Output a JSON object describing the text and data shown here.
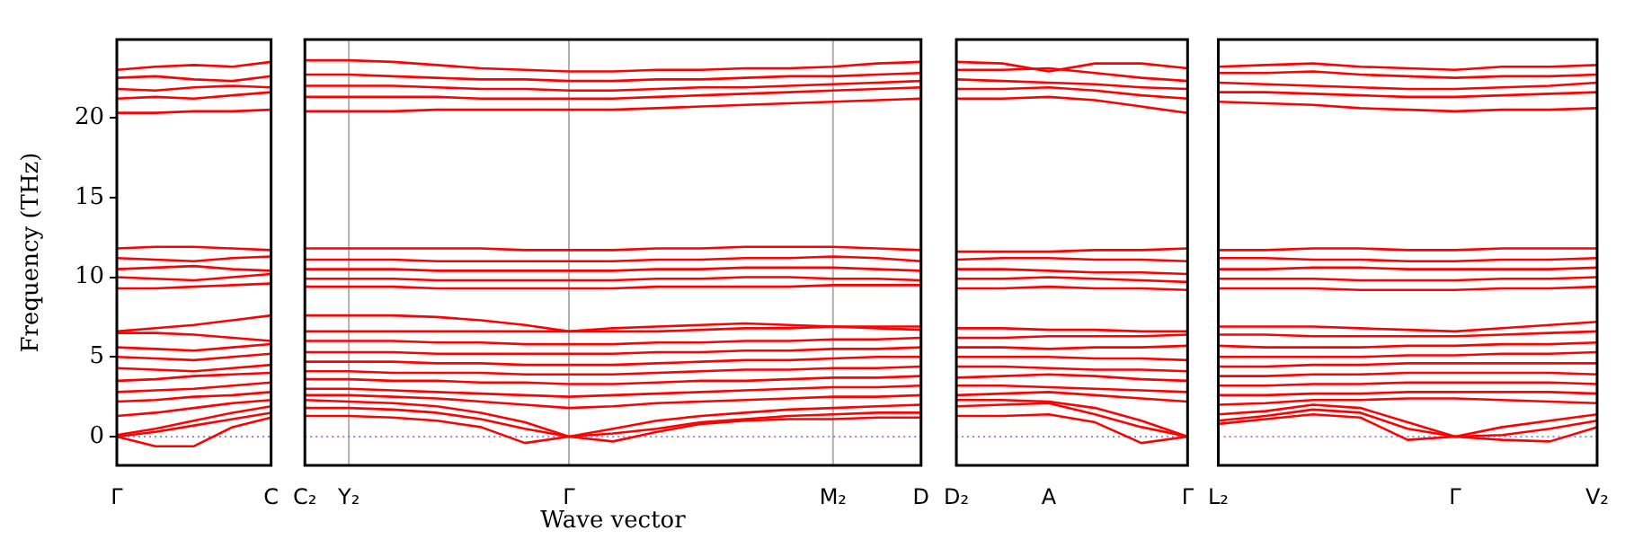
{
  "chart_data": [
    {
      "type": "line",
      "ylabel": "Frequency (THz)",
      "categories": [
        "Γ",
        null,
        null,
        null,
        "C"
      ],
      "ylim": [
        -1.8,
        24.9
      ],
      "yticks": [
        0,
        5,
        10,
        15,
        20
      ],
      "legend": false,
      "marker": "none",
      "line_style": "solid",
      "ref_lines": [
        {
          "axis": "y",
          "value": 0,
          "color": "#6666ff",
          "line_style": "dotted"
        }
      ],
      "series": [
        {
          "color": "#ff0000",
          "values": [
            0,
            -0.6,
            -0.6,
            0.6,
            1.2
          ]
        },
        {
          "color": "#ff0000",
          "values": [
            0,
            0.3,
            0.7,
            1.1,
            1.5
          ]
        },
        {
          "color": "#ff0000",
          "values": [
            0.1,
            0.5,
            1.0,
            1.5,
            1.9
          ]
        },
        {
          "color": "#ff0000",
          "values": [
            1.3,
            1.5,
            1.8,
            2.1,
            2.3
          ]
        },
        {
          "color": "#ff0000",
          "values": [
            2.2,
            2.3,
            2.5,
            2.6,
            2.8
          ]
        },
        {
          "color": "#ff0000",
          "values": [
            2.8,
            2.9,
            3.0,
            3.2,
            3.4
          ]
        },
        {
          "color": "#ff0000",
          "values": [
            3.5,
            3.6,
            3.8,
            3.9,
            4.0
          ]
        },
        {
          "color": "#ff0000",
          "values": [
            4.3,
            4.2,
            4.1,
            4.3,
            4.5
          ]
        },
        {
          "color": "#ff0000",
          "values": [
            5.0,
            4.9,
            4.8,
            5.0,
            5.2
          ]
        },
        {
          "color": "#ff0000",
          "values": [
            5.6,
            5.5,
            5.4,
            5.6,
            5.8
          ]
        },
        {
          "color": "#ff0000",
          "values": [
            6.5,
            6.5,
            6.4,
            6.2,
            6.0
          ]
        },
        {
          "color": "#ff0000",
          "values": [
            6.6,
            6.8,
            7.0,
            7.3,
            7.6
          ]
        },
        {
          "color": "#ff0000",
          "values": [
            9.3,
            9.3,
            9.4,
            9.5,
            9.6
          ]
        },
        {
          "color": "#ff0000",
          "values": [
            10.0,
            9.9,
            9.8,
            10.0,
            10.2
          ]
        },
        {
          "color": "#ff0000",
          "values": [
            10.5,
            10.6,
            10.7,
            10.5,
            10.4
          ]
        },
        {
          "color": "#ff0000",
          "values": [
            11.2,
            11.1,
            11.0,
            11.2,
            11.3
          ]
        },
        {
          "color": "#ff0000",
          "values": [
            11.8,
            11.9,
            11.9,
            11.8,
            11.7
          ]
        },
        {
          "color": "#ff0000",
          "values": [
            20.3,
            20.3,
            20.4,
            20.4,
            20.5
          ]
        },
        {
          "color": "#ff0000",
          "values": [
            21.2,
            21.3,
            21.2,
            21.4,
            21.6
          ]
        },
        {
          "color": "#ff0000",
          "values": [
            21.8,
            21.7,
            21.9,
            22.0,
            21.9
          ]
        },
        {
          "color": "#ff0000",
          "values": [
            22.5,
            22.6,
            22.4,
            22.3,
            22.6
          ]
        },
        {
          "color": "#ff0000",
          "values": [
            23.0,
            23.2,
            23.3,
            23.2,
            23.5
          ]
        }
      ]
    },
    {
      "type": "line",
      "xlabel": "Wave vector",
      "categories": [
        "C₂",
        "Y₂",
        null,
        null,
        null,
        null,
        "Γ",
        null,
        null,
        null,
        null,
        null,
        "M₂",
        null,
        "D"
      ],
      "ylim": [
        -1.8,
        24.9
      ],
      "yticks": [
        0,
        5,
        10,
        15,
        20
      ],
      "tick_labels": "x",
      "grid": "x",
      "legend": false,
      "marker": "none",
      "line_style": "solid",
      "ref_lines": [
        {
          "axis": "y",
          "value": 0,
          "color": "#6666ff",
          "line_style": "dotted"
        }
      ],
      "series": [
        {
          "color": "#ff0000",
          "values": [
            1.3,
            1.3,
            1.2,
            1.0,
            0.6,
            -0.4,
            0,
            -0.3,
            0.3,
            0.8,
            1.0,
            1.1,
            1.1,
            1.2,
            1.2
          ]
        },
        {
          "color": "#ff0000",
          "values": [
            1.8,
            1.8,
            1.7,
            1.5,
            1.1,
            0.5,
            0,
            0.2,
            0.5,
            0.9,
            1.1,
            1.3,
            1.4,
            1.5,
            1.5
          ]
        },
        {
          "color": "#ff0000",
          "values": [
            2.3,
            2.2,
            2.1,
            1.9,
            1.5,
            0.9,
            0,
            0.5,
            1.0,
            1.3,
            1.5,
            1.7,
            1.8,
            1.9,
            2.0
          ]
        },
        {
          "color": "#ff0000",
          "values": [
            2.6,
            2.6,
            2.5,
            2.4,
            2.2,
            2.0,
            1.8,
            1.9,
            2.1,
            2.2,
            2.3,
            2.4,
            2.5,
            2.5,
            2.6
          ]
        },
        {
          "color": "#ff0000",
          "values": [
            3.0,
            3.0,
            2.9,
            2.8,
            2.7,
            2.6,
            2.5,
            2.6,
            2.7,
            2.8,
            2.9,
            3.0,
            3.1,
            3.1,
            3.2
          ]
        },
        {
          "color": "#ff0000",
          "values": [
            3.6,
            3.6,
            3.5,
            3.5,
            3.4,
            3.4,
            3.3,
            3.3,
            3.4,
            3.5,
            3.5,
            3.6,
            3.7,
            3.7,
            3.8
          ]
        },
        {
          "color": "#ff0000",
          "values": [
            4.1,
            4.1,
            4.0,
            4.0,
            4.0,
            3.9,
            3.9,
            3.9,
            4.0,
            4.1,
            4.2,
            4.2,
            4.3,
            4.3,
            4.4
          ]
        },
        {
          "color": "#ff0000",
          "values": [
            4.7,
            4.7,
            4.7,
            4.6,
            4.6,
            4.5,
            4.5,
            4.5,
            4.6,
            4.7,
            4.8,
            4.8,
            4.9,
            5.0,
            5.0
          ]
        },
        {
          "color": "#ff0000",
          "values": [
            5.3,
            5.3,
            5.3,
            5.2,
            5.2,
            5.2,
            5.2,
            5.2,
            5.3,
            5.3,
            5.4,
            5.4,
            5.5,
            5.5,
            5.6
          ]
        },
        {
          "color": "#ff0000",
          "values": [
            6.0,
            6.0,
            6.0,
            5.9,
            5.9,
            5.8,
            5.8,
            5.8,
            5.9,
            5.9,
            6.0,
            6.0,
            6.1,
            6.1,
            6.2
          ]
        },
        {
          "color": "#ff0000",
          "values": [
            6.6,
            6.6,
            6.6,
            6.6,
            6.6,
            6.6,
            6.6,
            6.6,
            6.6,
            6.7,
            6.8,
            6.8,
            6.9,
            6.9,
            6.9
          ]
        },
        {
          "color": "#ff0000",
          "values": [
            7.6,
            7.6,
            7.6,
            7.5,
            7.3,
            7.0,
            6.6,
            6.8,
            6.9,
            7.0,
            7.1,
            7.0,
            6.9,
            6.8,
            6.7
          ]
        },
        {
          "color": "#ff0000",
          "values": [
            9.4,
            9.4,
            9.4,
            9.3,
            9.3,
            9.3,
            9.3,
            9.3,
            9.4,
            9.4,
            9.4,
            9.4,
            9.5,
            9.5,
            9.5
          ]
        },
        {
          "color": "#ff0000",
          "values": [
            9.9,
            9.9,
            9.9,
            9.8,
            9.8,
            9.8,
            9.8,
            9.8,
            9.9,
            9.9,
            10.0,
            10.0,
            9.9,
            9.9,
            9.8
          ]
        },
        {
          "color": "#ff0000",
          "values": [
            10.5,
            10.5,
            10.5,
            10.4,
            10.4,
            10.4,
            10.4,
            10.4,
            10.5,
            10.5,
            10.6,
            10.6,
            10.6,
            10.5,
            10.4
          ]
        },
        {
          "color": "#ff0000",
          "values": [
            11.1,
            11.1,
            11.1,
            11.0,
            11.0,
            11.0,
            11.0,
            11.0,
            11.1,
            11.1,
            11.2,
            11.2,
            11.3,
            11.2,
            11.0
          ]
        },
        {
          "color": "#ff0000",
          "values": [
            11.8,
            11.8,
            11.8,
            11.8,
            11.8,
            11.7,
            11.7,
            11.7,
            11.8,
            11.8,
            11.9,
            11.9,
            11.9,
            11.8,
            11.7
          ]
        },
        {
          "color": "#ff0000",
          "values": [
            20.4,
            20.4,
            20.4,
            20.5,
            20.5,
            20.5,
            20.5,
            20.5,
            20.6,
            20.7,
            20.8,
            20.9,
            21.0,
            21.1,
            21.2
          ]
        },
        {
          "color": "#ff0000",
          "values": [
            21.3,
            21.3,
            21.3,
            21.3,
            21.2,
            21.2,
            21.2,
            21.2,
            21.3,
            21.4,
            21.5,
            21.6,
            21.7,
            21.8,
            21.9
          ]
        },
        {
          "color": "#ff0000",
          "values": [
            22.0,
            22.0,
            22.0,
            21.9,
            21.8,
            21.8,
            21.7,
            21.7,
            21.8,
            21.9,
            21.9,
            22.0,
            22.1,
            22.2,
            22.3
          ]
        },
        {
          "color": "#ff0000",
          "values": [
            22.7,
            22.7,
            22.6,
            22.5,
            22.4,
            22.4,
            22.3,
            22.3,
            22.4,
            22.4,
            22.5,
            22.6,
            22.6,
            22.7,
            22.8
          ]
        },
        {
          "color": "#ff0000",
          "values": [
            23.6,
            23.6,
            23.5,
            23.3,
            23.1,
            23.0,
            22.9,
            22.9,
            23.0,
            23.0,
            23.1,
            23.1,
            23.2,
            23.4,
            23.5
          ]
        }
      ]
    },
    {
      "type": "line",
      "categories": [
        "D₂",
        null,
        "A",
        null,
        null,
        "Γ"
      ],
      "ylim": [
        -1.8,
        24.9
      ],
      "yticks": [
        0,
        5,
        10,
        15,
        20
      ],
      "tick_labels": "x",
      "legend": false,
      "marker": "none",
      "line_style": "solid",
      "ref_lines": [
        {
          "axis": "y",
          "value": 0,
          "color": "#6666ff",
          "line_style": "dotted"
        }
      ],
      "series": [
        {
          "color": "#ff0000",
          "values": [
            1.3,
            1.3,
            1.4,
            0.9,
            -0.4,
            0
          ]
        },
        {
          "color": "#ff0000",
          "values": [
            1.9,
            2.0,
            2.1,
            1.4,
            0.6,
            0
          ]
        },
        {
          "color": "#ff0000",
          "values": [
            2.3,
            2.3,
            2.2,
            1.8,
            1.0,
            0
          ]
        },
        {
          "color": "#ff0000",
          "values": [
            2.6,
            2.7,
            2.8,
            2.6,
            2.4,
            2.2
          ]
        },
        {
          "color": "#ff0000",
          "values": [
            3.2,
            3.2,
            3.1,
            3.0,
            2.9,
            2.8
          ]
        },
        {
          "color": "#ff0000",
          "values": [
            3.7,
            3.8,
            3.9,
            3.8,
            3.6,
            3.5
          ]
        },
        {
          "color": "#ff0000",
          "values": [
            4.4,
            4.4,
            4.3,
            4.2,
            4.2,
            4.1
          ]
        },
        {
          "color": "#ff0000",
          "values": [
            5.0,
            5.0,
            5.0,
            4.9,
            4.9,
            4.8
          ]
        },
        {
          "color": "#ff0000",
          "values": [
            5.6,
            5.6,
            5.5,
            5.6,
            5.6,
            5.7
          ]
        },
        {
          "color": "#ff0000",
          "values": [
            6.2,
            6.2,
            6.3,
            6.3,
            6.3,
            6.4
          ]
        },
        {
          "color": "#ff0000",
          "values": [
            6.8,
            6.8,
            6.7,
            6.7,
            6.6,
            6.6
          ]
        },
        {
          "color": "#ff0000",
          "values": [
            9.3,
            9.3,
            9.4,
            9.3,
            9.3,
            9.2
          ]
        },
        {
          "color": "#ff0000",
          "values": [
            9.9,
            9.9,
            10.0,
            9.9,
            9.8,
            9.7
          ]
        },
        {
          "color": "#ff0000",
          "values": [
            10.5,
            10.5,
            10.4,
            10.3,
            10.3,
            10.2
          ]
        },
        {
          "color": "#ff0000",
          "values": [
            11.1,
            11.2,
            11.2,
            11.1,
            11.1,
            11.0
          ]
        },
        {
          "color": "#ff0000",
          "values": [
            11.6,
            11.6,
            11.6,
            11.7,
            11.7,
            11.8
          ]
        },
        {
          "color": "#ff0000",
          "values": [
            21.2,
            21.2,
            21.3,
            21.1,
            20.7,
            20.3
          ]
        },
        {
          "color": "#ff0000",
          "values": [
            21.8,
            21.8,
            21.9,
            21.7,
            21.4,
            21.2
          ]
        },
        {
          "color": "#ff0000",
          "values": [
            22.4,
            22.3,
            22.2,
            22.1,
            21.9,
            21.8
          ]
        },
        {
          "color": "#ff0000",
          "values": [
            23.0,
            23.0,
            23.1,
            22.8,
            22.5,
            22.3
          ]
        },
        {
          "color": "#ff0000",
          "values": [
            23.5,
            23.4,
            22.9,
            23.4,
            23.4,
            23.1
          ]
        }
      ]
    },
    {
      "type": "line",
      "categories": [
        "L₂",
        null,
        null,
        null,
        null,
        "Γ",
        null,
        null,
        "V₂"
      ],
      "ylim": [
        -1.8,
        24.9
      ],
      "yticks": [
        0,
        5,
        10,
        15,
        20
      ],
      "tick_labels": "x",
      "legend": false,
      "marker": "none",
      "line_style": "solid",
      "ref_lines": [
        {
          "axis": "y",
          "value": 0,
          "color": "#6666ff",
          "line_style": "dotted"
        }
      ],
      "series": [
        {
          "color": "#ff0000",
          "values": [
            0.8,
            1.1,
            1.4,
            1.2,
            -0.2,
            0,
            -0.2,
            -0.3,
            0.6
          ]
        },
        {
          "color": "#ff0000",
          "values": [
            1.0,
            1.3,
            1.7,
            1.5,
            0.5,
            0,
            0.1,
            0.5,
            1.0
          ]
        },
        {
          "color": "#ff0000",
          "values": [
            1.4,
            1.6,
            2.0,
            1.8,
            0.9,
            0,
            0.6,
            1.0,
            1.4
          ]
        },
        {
          "color": "#ff0000",
          "values": [
            2.0,
            2.1,
            2.3,
            2.3,
            2.4,
            2.4,
            2.3,
            2.2,
            2.1
          ]
        },
        {
          "color": "#ff0000",
          "values": [
            2.6,
            2.6,
            2.7,
            2.7,
            2.8,
            2.8,
            2.8,
            2.8,
            2.7
          ]
        },
        {
          "color": "#ff0000",
          "values": [
            3.2,
            3.2,
            3.3,
            3.3,
            3.4,
            3.4,
            3.4,
            3.4,
            3.3
          ]
        },
        {
          "color": "#ff0000",
          "values": [
            3.8,
            3.8,
            3.9,
            3.9,
            4.0,
            4.0,
            4.0,
            4.0,
            3.9
          ]
        },
        {
          "color": "#ff0000",
          "values": [
            4.4,
            4.4,
            4.5,
            4.5,
            4.6,
            4.6,
            4.6,
            4.6,
            4.6
          ]
        },
        {
          "color": "#ff0000",
          "values": [
            5.0,
            5.0,
            5.0,
            5.0,
            5.1,
            5.1,
            5.2,
            5.2,
            5.3
          ]
        },
        {
          "color": "#ff0000",
          "values": [
            5.7,
            5.6,
            5.6,
            5.6,
            5.7,
            5.7,
            5.8,
            5.8,
            5.9
          ]
        },
        {
          "color": "#ff0000",
          "values": [
            6.4,
            6.4,
            6.3,
            6.3,
            6.3,
            6.3,
            6.4,
            6.5,
            6.6
          ]
        },
        {
          "color": "#ff0000",
          "values": [
            6.9,
            6.9,
            6.9,
            6.8,
            6.7,
            6.6,
            6.8,
            7.0,
            7.2
          ]
        },
        {
          "color": "#ff0000",
          "values": [
            9.3,
            9.3,
            9.3,
            9.2,
            9.2,
            9.2,
            9.3,
            9.3,
            9.4
          ]
        },
        {
          "color": "#ff0000",
          "values": [
            9.9,
            9.9,
            9.9,
            9.8,
            9.8,
            9.8,
            9.9,
            9.9,
            10.0
          ]
        },
        {
          "color": "#ff0000",
          "values": [
            10.5,
            10.5,
            10.6,
            10.6,
            10.5,
            10.5,
            10.5,
            10.5,
            10.6
          ]
        },
        {
          "color": "#ff0000",
          "values": [
            11.2,
            11.2,
            11.1,
            11.1,
            11.0,
            11.0,
            11.1,
            11.1,
            11.2
          ]
        },
        {
          "color": "#ff0000",
          "values": [
            11.7,
            11.7,
            11.8,
            11.8,
            11.7,
            11.7,
            11.8,
            11.8,
            11.8
          ]
        },
        {
          "color": "#ff0000",
          "values": [
            21.0,
            20.9,
            20.8,
            20.6,
            20.5,
            20.4,
            20.5,
            20.5,
            20.6
          ]
        },
        {
          "color": "#ff0000",
          "values": [
            21.6,
            21.6,
            21.5,
            21.4,
            21.3,
            21.3,
            21.4,
            21.5,
            21.6
          ]
        },
        {
          "color": "#ff0000",
          "values": [
            22.2,
            22.1,
            22.0,
            21.9,
            21.8,
            21.8,
            21.9,
            22.0,
            22.2
          ]
        },
        {
          "color": "#ff0000",
          "values": [
            22.8,
            22.8,
            22.9,
            22.7,
            22.6,
            22.5,
            22.6,
            22.6,
            22.7
          ]
        },
        {
          "color": "#ff0000",
          "values": [
            23.2,
            23.3,
            23.4,
            23.2,
            23.1,
            23.0,
            23.2,
            23.2,
            23.3
          ]
        }
      ]
    }
  ]
}
